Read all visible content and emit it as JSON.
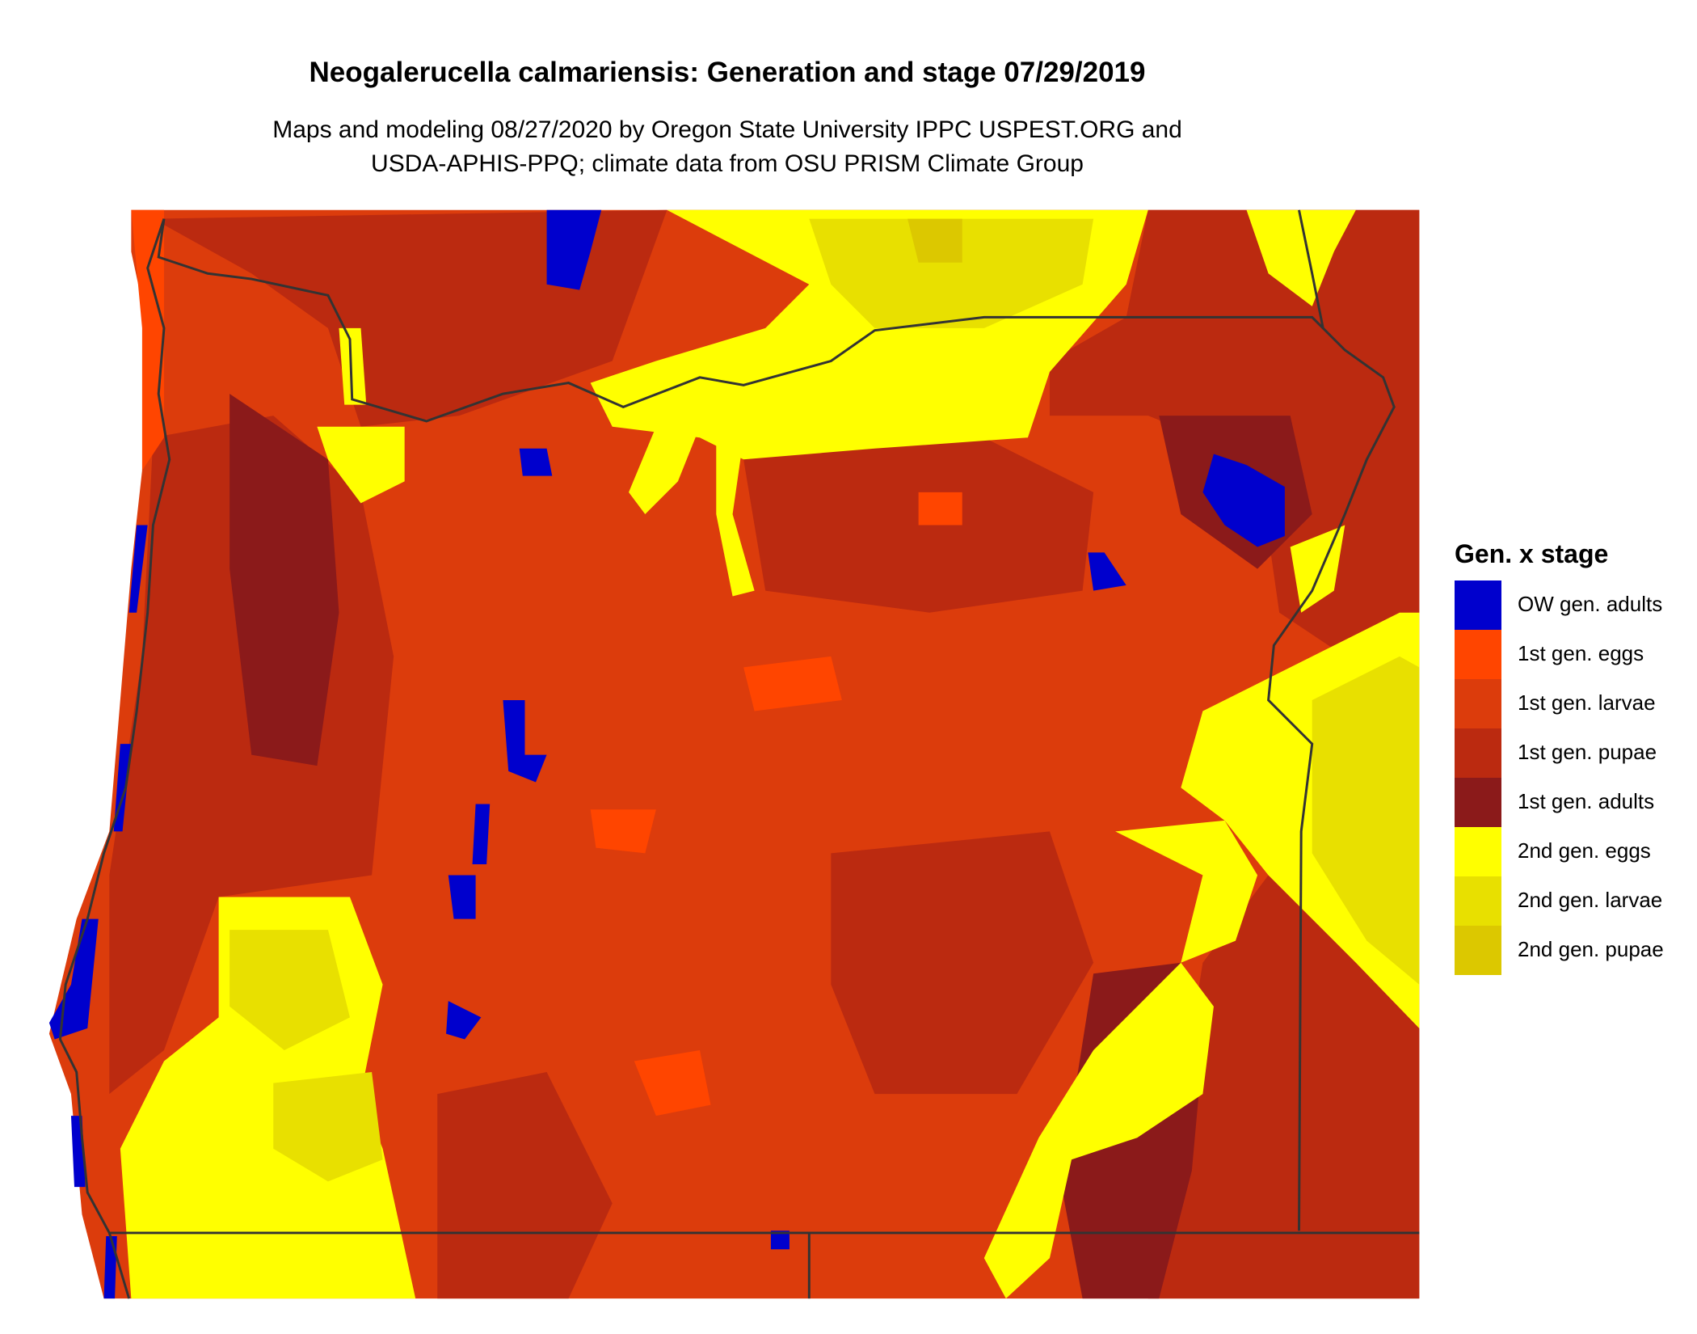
{
  "title": "Neogalerucella calmariensis: Generation and stage 07/29/2019",
  "subtitle": [
    "Maps and modeling 08/27/2020 by Oregon State University IPPC USPEST.ORG and",
    "USDA-APHIS-PPQ; climate data from OSU PRISM Climate Group"
  ],
  "legend": {
    "title": "Gen. x stage",
    "items": [
      {
        "label": "OW gen. adults",
        "color": "#0000cd"
      },
      {
        "label": "1st gen. eggs",
        "color": "#ff4500"
      },
      {
        "label": "1st gen. larvae",
        "color": "#dc3c0c"
      },
      {
        "label": "1st gen. pupae",
        "color": "#bb2a10"
      },
      {
        "label": "1st gen. adults",
        "color": "#8b1a1a"
      },
      {
        "label": "2nd gen. eggs",
        "color": "#ffff00"
      },
      {
        "label": "2nd gen. larvae",
        "color": "#e8e000"
      },
      {
        "label": "2nd gen. pupae",
        "color": "#dcc800"
      }
    ]
  }
}
